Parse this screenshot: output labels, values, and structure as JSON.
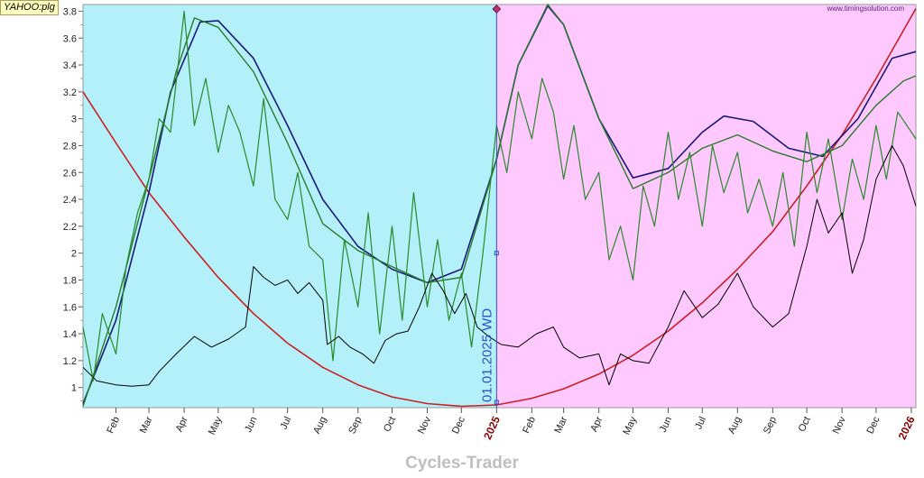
{
  "header": {
    "ticker_label": "YAHOO:plg",
    "website": "www.timingsolution.com"
  },
  "footer": {
    "brand": "Cycles-Trader"
  },
  "divider": {
    "label": "01.01.2025 WD",
    "date": "2025-01-01"
  },
  "colors": {
    "past_zone": "#b3f0fa",
    "future_zone": "#ffc8ff",
    "price": "#000000",
    "red_cycle": "#cc2020",
    "blue_cycle": "#1a1a7a",
    "green_smooth": "#2a7a2a",
    "green_oscillator": "#2a8a2a",
    "divider": "#3050c0"
  },
  "chart_data": {
    "type": "line",
    "x_axis": {
      "range": [
        "2024-01-03",
        "2026-01-05"
      ],
      "ticks": [
        {
          "label": "Feb",
          "date": "2024-02-01",
          "year": false
        },
        {
          "label": "Mar",
          "date": "2024-03-01",
          "year": false
        },
        {
          "label": "Apr",
          "date": "2024-04-01",
          "year": false
        },
        {
          "label": "May",
          "date": "2024-05-01",
          "year": false
        },
        {
          "label": "Jun",
          "date": "2024-06-01",
          "year": false
        },
        {
          "label": "Jul",
          "date": "2024-07-01",
          "year": false
        },
        {
          "label": "Aug",
          "date": "2024-08-01",
          "year": false
        },
        {
          "label": "Sep",
          "date": "2024-09-01",
          "year": false
        },
        {
          "label": "Oct",
          "date": "2024-10-01",
          "year": false
        },
        {
          "label": "Nov",
          "date": "2024-11-01",
          "year": false
        },
        {
          "label": "Dec",
          "date": "2024-12-01",
          "year": false
        },
        {
          "label": "2025",
          "date": "2025-01-01",
          "year": true
        },
        {
          "label": "Feb",
          "date": "2025-02-01",
          "year": false
        },
        {
          "label": "Mar",
          "date": "2025-03-01",
          "year": false
        },
        {
          "label": "Apr",
          "date": "2025-04-01",
          "year": false
        },
        {
          "label": "May",
          "date": "2025-05-01",
          "year": false
        },
        {
          "label": "Jun",
          "date": "2025-06-01",
          "year": false
        },
        {
          "label": "Jul",
          "date": "2025-07-01",
          "year": false
        },
        {
          "label": "Aug",
          "date": "2025-08-01",
          "year": false
        },
        {
          "label": "Sep",
          "date": "2025-09-01",
          "year": false
        },
        {
          "label": "Oct",
          "date": "2025-10-01",
          "year": false
        },
        {
          "label": "Nov",
          "date": "2025-11-01",
          "year": false
        },
        {
          "label": "Dec",
          "date": "2025-12-01",
          "year": false
        },
        {
          "label": "2026",
          "date": "2026-01-01",
          "year": true
        }
      ]
    },
    "y_axis": {
      "range": [
        0.85,
        3.85
      ],
      "ticks": [
        {
          "label": "1",
          "value": 1.0
        },
        {
          "label": "1.2",
          "value": 1.2
        },
        {
          "label": "1.4",
          "value": 1.4
        },
        {
          "label": "1.6",
          "value": 1.6
        },
        {
          "label": "1.8",
          "value": 1.8
        },
        {
          "label": "2",
          "value": 2.0
        },
        {
          "label": "2.2",
          "value": 2.2
        },
        {
          "label": "2.4",
          "value": 2.4
        },
        {
          "label": "2.6",
          "value": 2.6
        },
        {
          "label": "2.8",
          "value": 2.8
        },
        {
          "label": "3",
          "value": 3.0
        },
        {
          "label": "3.2",
          "value": 3.2
        },
        {
          "label": "3.4",
          "value": 3.4
        },
        {
          "label": "3.6",
          "value": 3.6
        },
        {
          "label": "3.8",
          "value": 3.8
        }
      ]
    },
    "series": [
      {
        "key": "red_cycle",
        "color": "#cc2020",
        "width": 1.6,
        "points": [
          [
            "2024-01-03",
            3.2
          ],
          [
            "2024-02-01",
            2.82
          ],
          [
            "2024-03-01",
            2.45
          ],
          [
            "2024-04-01",
            2.12
          ],
          [
            "2024-05-01",
            1.82
          ],
          [
            "2024-06-01",
            1.55
          ],
          [
            "2024-07-01",
            1.33
          ],
          [
            "2024-08-01",
            1.15
          ],
          [
            "2024-09-01",
            1.02
          ],
          [
            "2024-10-01",
            0.93
          ],
          [
            "2024-11-01",
            0.88
          ],
          [
            "2024-12-01",
            0.86
          ],
          [
            "2025-01-01",
            0.87
          ],
          [
            "2025-02-01",
            0.92
          ],
          [
            "2025-03-01",
            0.99
          ],
          [
            "2025-04-01",
            1.1
          ],
          [
            "2025-05-01",
            1.24
          ],
          [
            "2025-06-01",
            1.42
          ],
          [
            "2025-07-01",
            1.63
          ],
          [
            "2025-08-01",
            1.88
          ],
          [
            "2025-09-01",
            2.16
          ],
          [
            "2025-10-01",
            2.5
          ],
          [
            "2025-11-01",
            2.88
          ],
          [
            "2025-12-01",
            3.3
          ],
          [
            "2026-01-05",
            3.82
          ]
        ]
      },
      {
        "key": "blue_cycle",
        "color": "#1a1a7a",
        "width": 1.6,
        "points": [
          [
            "2024-01-03",
            0.88
          ],
          [
            "2024-02-01",
            1.5
          ],
          [
            "2024-03-01",
            2.45
          ],
          [
            "2024-03-20",
            3.2
          ],
          [
            "2024-04-15",
            3.72
          ],
          [
            "2024-05-01",
            3.73
          ],
          [
            "2024-06-01",
            3.45
          ],
          [
            "2024-07-01",
            2.95
          ],
          [
            "2024-08-01",
            2.4
          ],
          [
            "2024-09-01",
            2.05
          ],
          [
            "2024-10-01",
            1.88
          ],
          [
            "2024-11-01",
            1.78
          ],
          [
            "2024-12-01",
            1.88
          ],
          [
            "2025-01-01",
            2.7
          ],
          [
            "2025-01-20",
            3.4
          ],
          [
            "2025-02-15",
            3.84
          ],
          [
            "2025-03-01",
            3.7
          ],
          [
            "2025-04-01",
            3.0
          ],
          [
            "2025-05-01",
            2.56
          ],
          [
            "2025-06-01",
            2.63
          ],
          [
            "2025-07-01",
            2.9
          ],
          [
            "2025-07-20",
            3.02
          ],
          [
            "2025-08-15",
            2.98
          ],
          [
            "2025-09-15",
            2.78
          ],
          [
            "2025-10-15",
            2.72
          ],
          [
            "2025-11-15",
            3.0
          ],
          [
            "2025-12-15",
            3.45
          ],
          [
            "2026-01-05",
            3.5
          ]
        ]
      },
      {
        "key": "green_smooth",
        "color": "#2a7a2a",
        "width": 1.4,
        "points": [
          [
            "2024-01-03",
            0.86
          ],
          [
            "2024-02-01",
            1.6
          ],
          [
            "2024-03-01",
            2.55
          ],
          [
            "2024-03-25",
            3.35
          ],
          [
            "2024-04-10",
            3.75
          ],
          [
            "2024-05-01",
            3.68
          ],
          [
            "2024-06-01",
            3.35
          ],
          [
            "2024-07-01",
            2.82
          ],
          [
            "2024-08-01",
            2.22
          ],
          [
            "2024-09-01",
            2.02
          ],
          [
            "2024-10-01",
            1.9
          ],
          [
            "2024-11-01",
            1.78
          ],
          [
            "2024-12-01",
            1.82
          ],
          [
            "2025-01-01",
            2.7
          ],
          [
            "2025-01-20",
            3.4
          ],
          [
            "2025-02-15",
            3.85
          ],
          [
            "2025-03-01",
            3.7
          ],
          [
            "2025-04-01",
            3.0
          ],
          [
            "2025-05-01",
            2.48
          ],
          [
            "2025-06-01",
            2.6
          ],
          [
            "2025-07-01",
            2.78
          ],
          [
            "2025-08-01",
            2.88
          ],
          [
            "2025-09-01",
            2.76
          ],
          [
            "2025-10-01",
            2.68
          ],
          [
            "2025-11-01",
            2.8
          ],
          [
            "2025-12-01",
            3.1
          ],
          [
            "2025-12-25",
            3.28
          ],
          [
            "2026-01-05",
            3.32
          ]
        ]
      },
      {
        "key": "green_oscillator",
        "color": "#2a8a2a",
        "width": 1.2,
        "points": [
          [
            "2024-01-03",
            1.45
          ],
          [
            "2024-01-12",
            1.05
          ],
          [
            "2024-01-20",
            1.55
          ],
          [
            "2024-02-01",
            1.25
          ],
          [
            "2024-02-10",
            1.9
          ],
          [
            "2024-02-20",
            2.3
          ],
          [
            "2024-03-01",
            2.55
          ],
          [
            "2024-03-10",
            3.0
          ],
          [
            "2024-03-20",
            2.9
          ],
          [
            "2024-04-01",
            3.8
          ],
          [
            "2024-04-10",
            2.95
          ],
          [
            "2024-04-20",
            3.3
          ],
          [
            "2024-05-01",
            2.75
          ],
          [
            "2024-05-10",
            3.1
          ],
          [
            "2024-05-20",
            2.9
          ],
          [
            "2024-06-01",
            2.5
          ],
          [
            "2024-06-10",
            3.15
          ],
          [
            "2024-06-20",
            2.4
          ],
          [
            "2024-07-01",
            2.25
          ],
          [
            "2024-07-10",
            2.6
          ],
          [
            "2024-07-20",
            2.05
          ],
          [
            "2024-08-01",
            1.95
          ],
          [
            "2024-08-10",
            1.2
          ],
          [
            "2024-08-20",
            2.1
          ],
          [
            "2024-09-01",
            1.6
          ],
          [
            "2024-09-10",
            2.3
          ],
          [
            "2024-09-20",
            1.4
          ],
          [
            "2024-10-01",
            2.2
          ],
          [
            "2024-10-10",
            1.5
          ],
          [
            "2024-10-20",
            2.45
          ],
          [
            "2024-11-01",
            1.6
          ],
          [
            "2024-11-10",
            2.1
          ],
          [
            "2024-11-20",
            1.5
          ],
          [
            "2024-12-01",
            1.85
          ],
          [
            "2024-12-10",
            1.3
          ],
          [
            "2024-12-20",
            2.0
          ],
          [
            "2025-01-01",
            2.95
          ],
          [
            "2025-01-10",
            2.6
          ],
          [
            "2025-01-20",
            3.2
          ],
          [
            "2025-02-01",
            2.85
          ],
          [
            "2025-02-10",
            3.3
          ],
          [
            "2025-02-20",
            3.05
          ],
          [
            "2025-03-01",
            2.55
          ],
          [
            "2025-03-10",
            2.95
          ],
          [
            "2025-03-20",
            2.4
          ],
          [
            "2025-04-01",
            2.6
          ],
          [
            "2025-04-10",
            1.95
          ],
          [
            "2025-04-20",
            2.2
          ],
          [
            "2025-05-01",
            1.8
          ],
          [
            "2025-05-10",
            2.5
          ],
          [
            "2025-05-20",
            2.2
          ],
          [
            "2025-06-01",
            2.9
          ],
          [
            "2025-06-10",
            2.4
          ],
          [
            "2025-06-20",
            2.75
          ],
          [
            "2025-07-01",
            2.2
          ],
          [
            "2025-07-10",
            2.8
          ],
          [
            "2025-07-20",
            2.45
          ],
          [
            "2025-08-01",
            2.75
          ],
          [
            "2025-08-10",
            2.3
          ],
          [
            "2025-08-20",
            2.55
          ],
          [
            "2025-09-01",
            2.2
          ],
          [
            "2025-09-10",
            2.6
          ],
          [
            "2025-09-20",
            2.05
          ],
          [
            "2025-10-01",
            2.9
          ],
          [
            "2025-10-10",
            2.45
          ],
          [
            "2025-10-20",
            2.85
          ],
          [
            "2025-11-01",
            2.25
          ],
          [
            "2025-11-10",
            2.7
          ],
          [
            "2025-11-20",
            2.4
          ],
          [
            "2025-12-01",
            2.95
          ],
          [
            "2025-12-10",
            2.55
          ],
          [
            "2025-12-20",
            3.05
          ],
          [
            "2026-01-05",
            2.85
          ]
        ]
      },
      {
        "key": "price",
        "color": "#000000",
        "width": 1.0,
        "points": [
          [
            "2024-01-03",
            1.15
          ],
          [
            "2024-01-15",
            1.05
          ],
          [
            "2024-02-01",
            1.02
          ],
          [
            "2024-02-15",
            1.01
          ],
          [
            "2024-03-01",
            1.02
          ],
          [
            "2024-03-10",
            1.12
          ],
          [
            "2024-03-25",
            1.25
          ],
          [
            "2024-04-10",
            1.38
          ],
          [
            "2024-04-25",
            1.3
          ],
          [
            "2024-05-10",
            1.36
          ],
          [
            "2024-05-25",
            1.45
          ],
          [
            "2024-06-01",
            1.9
          ],
          [
            "2024-06-10",
            1.82
          ],
          [
            "2024-06-20",
            1.76
          ],
          [
            "2024-07-01",
            1.8
          ],
          [
            "2024-07-10",
            1.7
          ],
          [
            "2024-07-20",
            1.78
          ],
          [
            "2024-08-01",
            1.65
          ],
          [
            "2024-08-05",
            1.32
          ],
          [
            "2024-08-15",
            1.38
          ],
          [
            "2024-08-25",
            1.3
          ],
          [
            "2024-09-05",
            1.25
          ],
          [
            "2024-09-15",
            1.18
          ],
          [
            "2024-09-25",
            1.35
          ],
          [
            "2024-10-05",
            1.4
          ],
          [
            "2024-10-15",
            1.42
          ],
          [
            "2024-10-25",
            1.6
          ],
          [
            "2024-11-05",
            1.85
          ],
          [
            "2024-11-15",
            1.72
          ],
          [
            "2024-11-25",
            1.55
          ],
          [
            "2024-12-05",
            1.7
          ],
          [
            "2024-12-15",
            1.45
          ],
          [
            "2024-12-25",
            1.38
          ],
          [
            "2025-01-05",
            1.32
          ],
          [
            "2025-01-20",
            1.3
          ],
          [
            "2025-02-05",
            1.4
          ],
          [
            "2025-02-20",
            1.45
          ],
          [
            "2025-03-01",
            1.3
          ],
          [
            "2025-03-15",
            1.22
          ],
          [
            "2025-04-01",
            1.25
          ],
          [
            "2025-04-10",
            1.02
          ],
          [
            "2025-04-20",
            1.25
          ],
          [
            "2025-05-01",
            1.2
          ],
          [
            "2025-05-15",
            1.18
          ],
          [
            "2025-06-01",
            1.45
          ],
          [
            "2025-06-15",
            1.72
          ],
          [
            "2025-07-01",
            1.52
          ],
          [
            "2025-07-15",
            1.62
          ],
          [
            "2025-08-01",
            1.85
          ],
          [
            "2025-08-15",
            1.6
          ],
          [
            "2025-09-01",
            1.45
          ],
          [
            "2025-09-15",
            1.55
          ],
          [
            "2025-10-01",
            2.05
          ],
          [
            "2025-10-10",
            2.4
          ],
          [
            "2025-10-20",
            2.15
          ],
          [
            "2025-11-01",
            2.3
          ],
          [
            "2025-11-10",
            1.85
          ],
          [
            "2025-11-20",
            2.1
          ],
          [
            "2025-12-01",
            2.55
          ],
          [
            "2025-12-15",
            2.8
          ],
          [
            "2025-12-25",
            2.65
          ],
          [
            "2026-01-05",
            2.35
          ]
        ]
      }
    ]
  }
}
